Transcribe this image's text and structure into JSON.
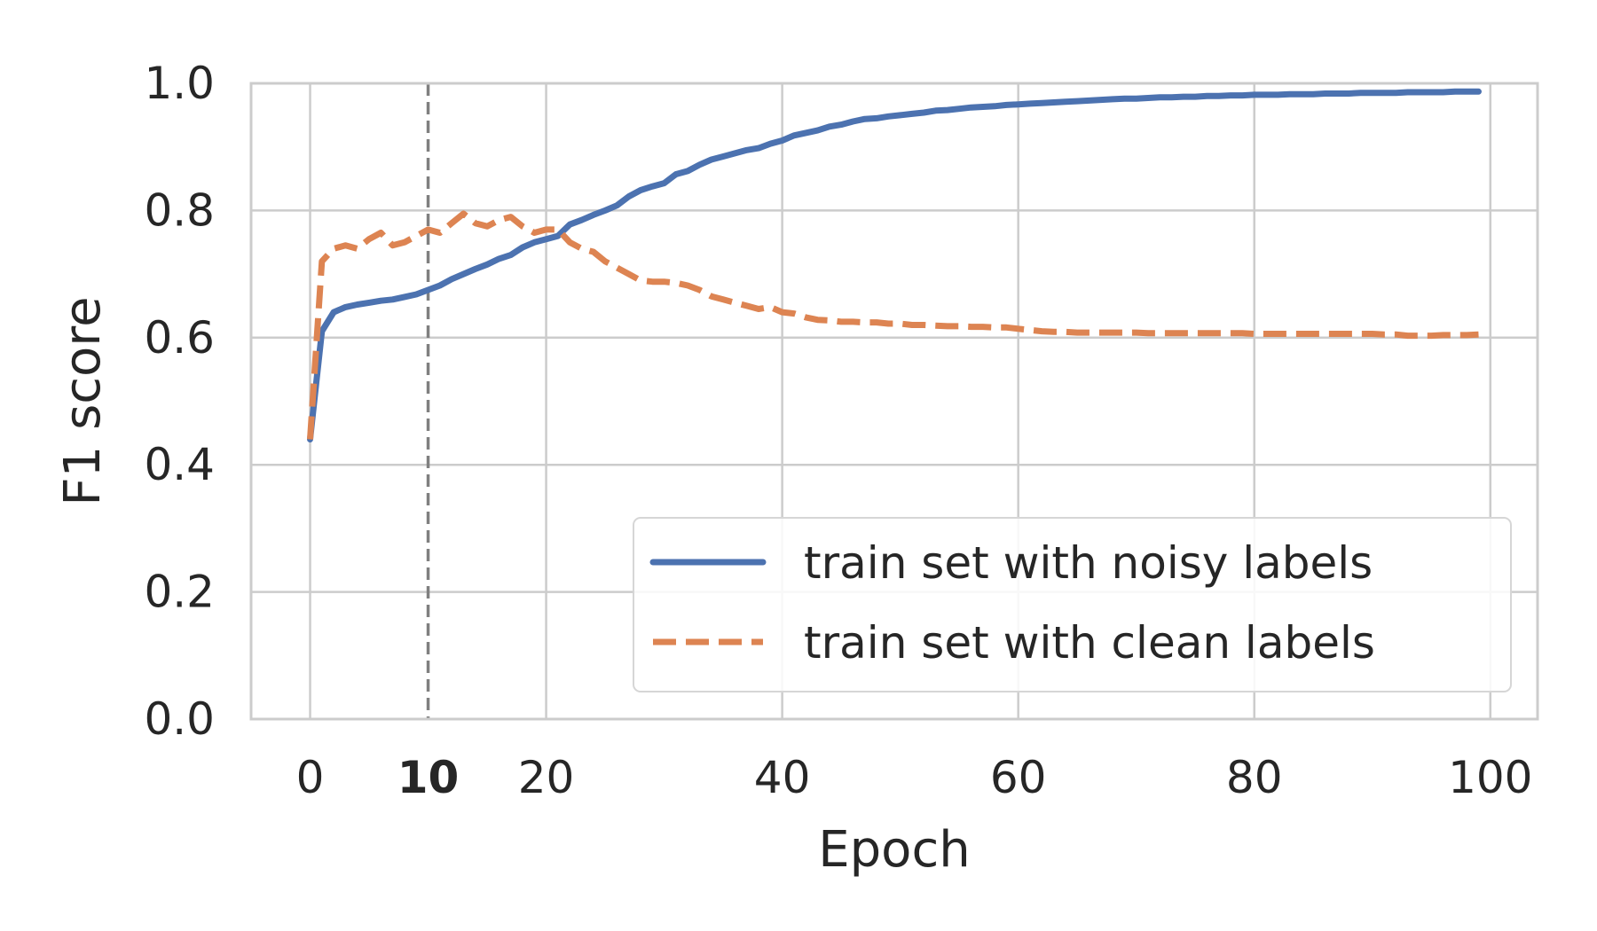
{
  "chart_data": {
    "type": "line",
    "xlabel": "Epoch",
    "ylabel": "F1 score",
    "xlim": [
      -5,
      104
    ],
    "ylim": [
      0,
      1
    ],
    "xticks": [
      {
        "value": 0,
        "label": "0",
        "bold": false
      },
      {
        "value": 10,
        "label": "10",
        "bold": true
      },
      {
        "value": 20,
        "label": "20",
        "bold": false
      },
      {
        "value": 40,
        "label": "40",
        "bold": false
      },
      {
        "value": 60,
        "label": "60",
        "bold": false
      },
      {
        "value": 80,
        "label": "80",
        "bold": false
      },
      {
        "value": 100,
        "label": "100",
        "bold": false
      }
    ],
    "yticks": [
      {
        "value": 0.0,
        "label": "0.0"
      },
      {
        "value": 0.2,
        "label": "0.2"
      },
      {
        "value": 0.4,
        "label": "0.4"
      },
      {
        "value": 0.6,
        "label": "0.6"
      },
      {
        "value": 0.8,
        "label": "0.8"
      },
      {
        "value": 1.0,
        "label": "1.0"
      }
    ],
    "grid": true,
    "vline": {
      "x": 10,
      "style": "dashed",
      "color": "#808080"
    },
    "legend_position": "lower-right",
    "series": [
      {
        "name": "train set with noisy labels",
        "color": "#4c72b0",
        "style": "solid",
        "x": [
          0,
          1,
          2,
          3,
          4,
          5,
          6,
          7,
          8,
          9,
          10,
          11,
          12,
          13,
          14,
          15,
          16,
          17,
          18,
          19,
          20,
          21,
          22,
          23,
          24,
          25,
          26,
          27,
          28,
          29,
          30,
          31,
          32,
          33,
          34,
          35,
          36,
          37,
          38,
          39,
          40,
          41,
          42,
          43,
          44,
          45,
          46,
          47,
          48,
          49,
          50,
          51,
          52,
          53,
          54,
          55,
          56,
          57,
          58,
          59,
          60,
          61,
          62,
          63,
          64,
          65,
          66,
          67,
          68,
          69,
          70,
          71,
          72,
          73,
          74,
          75,
          76,
          77,
          78,
          79,
          80,
          81,
          82,
          83,
          84,
          85,
          86,
          87,
          88,
          89,
          90,
          91,
          92,
          93,
          94,
          95,
          96,
          97,
          98,
          99
        ],
        "y": [
          0.44,
          0.61,
          0.64,
          0.648,
          0.652,
          0.655,
          0.658,
          0.66,
          0.664,
          0.668,
          0.675,
          0.682,
          0.692,
          0.7,
          0.708,
          0.715,
          0.724,
          0.73,
          0.742,
          0.75,
          0.755,
          0.76,
          0.778,
          0.785,
          0.793,
          0.8,
          0.808,
          0.822,
          0.832,
          0.838,
          0.843,
          0.857,
          0.862,
          0.872,
          0.88,
          0.885,
          0.89,
          0.895,
          0.898,
          0.905,
          0.91,
          0.918,
          0.922,
          0.926,
          0.932,
          0.935,
          0.94,
          0.944,
          0.945,
          0.948,
          0.95,
          0.952,
          0.954,
          0.957,
          0.958,
          0.96,
          0.962,
          0.963,
          0.964,
          0.966,
          0.967,
          0.968,
          0.969,
          0.97,
          0.971,
          0.972,
          0.973,
          0.974,
          0.975,
          0.976,
          0.976,
          0.977,
          0.978,
          0.978,
          0.979,
          0.979,
          0.98,
          0.98,
          0.981,
          0.981,
          0.982,
          0.982,
          0.982,
          0.983,
          0.983,
          0.983,
          0.984,
          0.984,
          0.984,
          0.985,
          0.985,
          0.985,
          0.985,
          0.986,
          0.986,
          0.986,
          0.986,
          0.987,
          0.987,
          0.987
        ]
      },
      {
        "name": "train set with clean labels",
        "color": "#dd8452",
        "style": "dashed",
        "x": [
          0,
          1,
          2,
          3,
          4,
          5,
          6,
          7,
          8,
          9,
          10,
          11,
          12,
          13,
          14,
          15,
          16,
          17,
          18,
          19,
          20,
          21,
          22,
          23,
          24,
          25,
          26,
          27,
          28,
          29,
          30,
          31,
          32,
          33,
          34,
          35,
          36,
          37,
          38,
          39,
          40,
          41,
          42,
          43,
          44,
          45,
          46,
          47,
          48,
          49,
          50,
          51,
          52,
          53,
          54,
          55,
          56,
          57,
          58,
          59,
          60,
          61,
          62,
          63,
          64,
          65,
          66,
          67,
          68,
          69,
          70,
          71,
          72,
          73,
          74,
          75,
          76,
          77,
          78,
          79,
          80,
          81,
          82,
          83,
          84,
          85,
          86,
          87,
          88,
          89,
          90,
          91,
          92,
          93,
          94,
          95,
          96,
          97,
          98,
          99
        ],
        "y": [
          0.44,
          0.72,
          0.74,
          0.745,
          0.74,
          0.755,
          0.765,
          0.745,
          0.75,
          0.76,
          0.77,
          0.765,
          0.78,
          0.795,
          0.78,
          0.775,
          0.785,
          0.79,
          0.775,
          0.765,
          0.77,
          0.77,
          0.75,
          0.74,
          0.735,
          0.72,
          0.71,
          0.7,
          0.69,
          0.688,
          0.688,
          0.686,
          0.682,
          0.675,
          0.665,
          0.66,
          0.655,
          0.65,
          0.645,
          0.648,
          0.64,
          0.638,
          0.632,
          0.628,
          0.627,
          0.625,
          0.625,
          0.624,
          0.624,
          0.622,
          0.622,
          0.62,
          0.62,
          0.619,
          0.618,
          0.618,
          0.617,
          0.617,
          0.616,
          0.616,
          0.614,
          0.612,
          0.61,
          0.609,
          0.609,
          0.608,
          0.608,
          0.608,
          0.608,
          0.608,
          0.608,
          0.607,
          0.607,
          0.607,
          0.607,
          0.607,
          0.607,
          0.607,
          0.607,
          0.607,
          0.606,
          0.606,
          0.606,
          0.606,
          0.606,
          0.606,
          0.606,
          0.606,
          0.606,
          0.606,
          0.606,
          0.605,
          0.605,
          0.603,
          0.603,
          0.603,
          0.604,
          0.604,
          0.604,
          0.605
        ]
      }
    ]
  }
}
